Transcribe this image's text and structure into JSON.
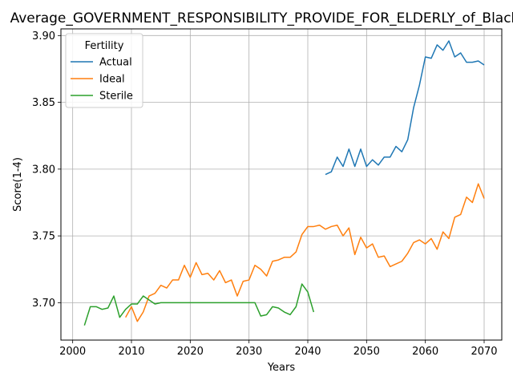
{
  "chart_data": {
    "type": "line",
    "title": "Average_GOVERNMENT_RESPONSIBILITY_PROVIDE_FOR_ELDERLY_of_Black",
    "xlabel": "Years",
    "ylabel": "Score(1-4)",
    "xlim": [
      1998,
      2073
    ],
    "ylim": [
      3.672,
      3.905
    ],
    "x_ticks": [
      2000,
      2010,
      2020,
      2030,
      2040,
      2050,
      2060,
      2070
    ],
    "y_ticks": [
      3.7,
      3.75,
      3.8,
      3.85,
      3.9
    ],
    "y_tick_labels": [
      "3.70",
      "3.75",
      "3.80",
      "3.85",
      "3.90"
    ],
    "grid": true,
    "legend": {
      "title": "Fertility",
      "position": "upper-left"
    },
    "series": [
      {
        "name": "Actual",
        "color": "#1f77b4",
        "x": [
          2043,
          2044,
          2045,
          2046,
          2047,
          2048,
          2049,
          2050,
          2051,
          2052,
          2053,
          2054,
          2055,
          2056,
          2057,
          2058,
          2059,
          2060,
          2061,
          2062,
          2063,
          2064,
          2065,
          2066,
          2067,
          2068,
          2069,
          2070
        ],
        "y": [
          3.796,
          3.798,
          3.809,
          3.802,
          3.815,
          3.802,
          3.815,
          3.802,
          3.807,
          3.803,
          3.809,
          3.809,
          3.817,
          3.813,
          3.822,
          3.846,
          3.863,
          3.884,
          3.883,
          3.893,
          3.889,
          3.896,
          3.884,
          3.887,
          3.88,
          3.88,
          3.881,
          3.878
        ]
      },
      {
        "name": "Ideal",
        "color": "#ff7f0e",
        "x": [
          2009,
          2010,
          2011,
          2012,
          2013,
          2014,
          2015,
          2016,
          2017,
          2018,
          2019,
          2020,
          2021,
          2022,
          2023,
          2024,
          2025,
          2026,
          2027,
          2028,
          2029,
          2030,
          2031,
          2032,
          2033,
          2034,
          2035,
          2036,
          2037,
          2038,
          2039,
          2040,
          2041,
          2042,
          2043,
          2044,
          2045,
          2046,
          2047,
          2048,
          2049,
          2050,
          2051,
          2052,
          2053,
          2054,
          2055,
          2056,
          2057,
          2058,
          2059,
          2060,
          2061,
          2062,
          2063,
          2064,
          2065,
          2066,
          2067,
          2068,
          2069,
          2070
        ],
        "y": [
          3.689,
          3.697,
          3.686,
          3.693,
          3.705,
          3.707,
          3.713,
          3.711,
          3.717,
          3.717,
          3.728,
          3.719,
          3.73,
          3.721,
          3.722,
          3.717,
          3.724,
          3.715,
          3.717,
          3.705,
          3.716,
          3.717,
          3.728,
          3.725,
          3.72,
          3.731,
          3.732,
          3.734,
          3.734,
          3.738,
          3.751,
          3.757,
          3.757,
          3.758,
          3.755,
          3.757,
          3.758,
          3.75,
          3.756,
          3.736,
          3.749,
          3.741,
          3.744,
          3.734,
          3.735,
          3.727,
          3.729,
          3.731,
          3.737,
          3.745,
          3.747,
          3.744,
          3.748,
          3.74,
          3.753,
          3.748,
          3.764,
          3.766,
          3.779,
          3.775,
          3.789,
          3.778
        ]
      },
      {
        "name": "Sterile",
        "color": "#2ca02c",
        "x": [
          2002,
          2003,
          2004,
          2005,
          2006,
          2007,
          2008,
          2009,
          2010,
          2011,
          2012,
          2013,
          2014,
          2015,
          2016,
          2017,
          2018,
          2019,
          2020,
          2021,
          2022,
          2023,
          2024,
          2025,
          2026,
          2027,
          2028,
          2029,
          2030,
          2031,
          2032,
          2033,
          2034,
          2035,
          2036,
          2037,
          2038,
          2039,
          2040,
          2041
        ],
        "y": [
          3.683,
          3.697,
          3.697,
          3.695,
          3.696,
          3.705,
          3.689,
          3.695,
          3.699,
          3.699,
          3.705,
          3.702,
          3.699,
          3.7,
          3.7,
          3.7,
          3.7,
          3.7,
          3.7,
          3.7,
          3.7,
          3.7,
          3.7,
          3.7,
          3.7,
          3.7,
          3.7,
          3.7,
          3.7,
          3.7,
          3.69,
          3.691,
          3.697,
          3.696,
          3.693,
          3.691,
          3.697,
          3.714,
          3.708,
          3.693
        ]
      }
    ]
  }
}
